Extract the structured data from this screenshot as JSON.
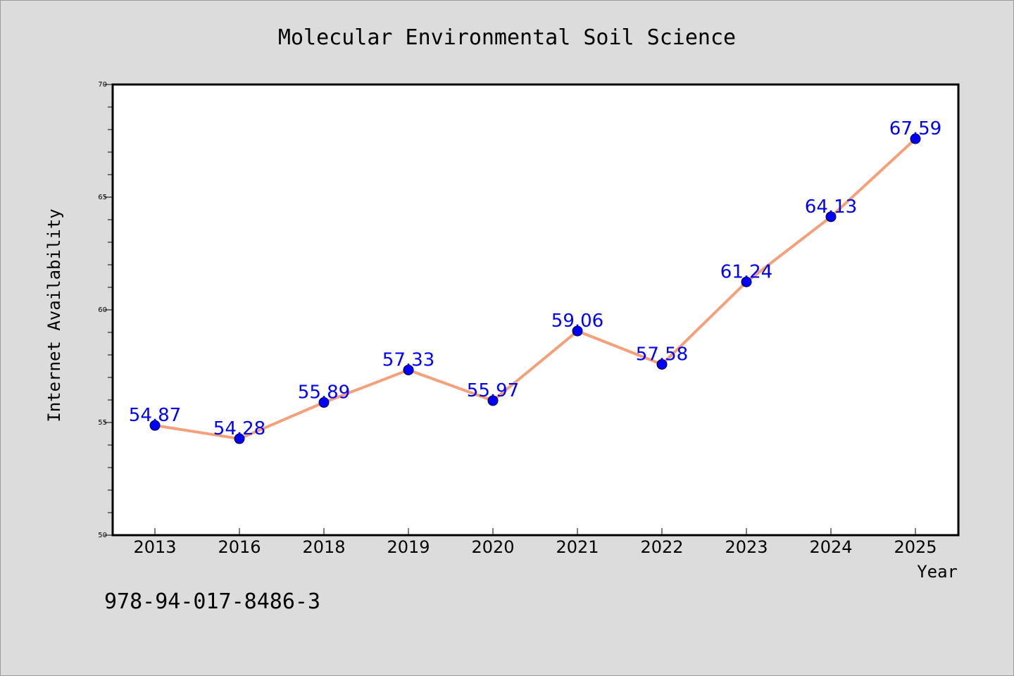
{
  "chart_data": {
    "type": "line",
    "title": "Molecular Environmental Soil Science",
    "xlabel": "Year",
    "ylabel": "Internet Availability",
    "categories": [
      "2013",
      "2016",
      "2018",
      "2019",
      "2020",
      "2021",
      "2022",
      "2023",
      "2024",
      "2025"
    ],
    "series": [
      {
        "values": [
          54.87,
          54.28,
          55.89,
          57.33,
          55.97,
          59.06,
          57.58,
          61.24,
          64.13,
          67.59
        ],
        "data_labels": [
          "54.87",
          "54.28",
          "55.89",
          "57.33",
          "55.97",
          "59.06",
          "57.58",
          "61.24",
          "64.13",
          "67.59"
        ],
        "line_color": "#f4a07a",
        "marker_color": "#0000ff"
      }
    ],
    "ylim": [
      50,
      70
    ],
    "yticks": [
      50,
      55,
      60,
      65,
      70
    ],
    "ytick_labels": [
      "50",
      "55",
      "60",
      "65",
      "70"
    ],
    "grid": false,
    "legend": "none"
  },
  "footer_text": "978-94-017-8486-3",
  "colors": {
    "background": "#dcdcdc",
    "plot_background": "#ffffff",
    "line": "#f4a07a",
    "marker": "#0000ff",
    "data_label": "#0000ff"
  }
}
